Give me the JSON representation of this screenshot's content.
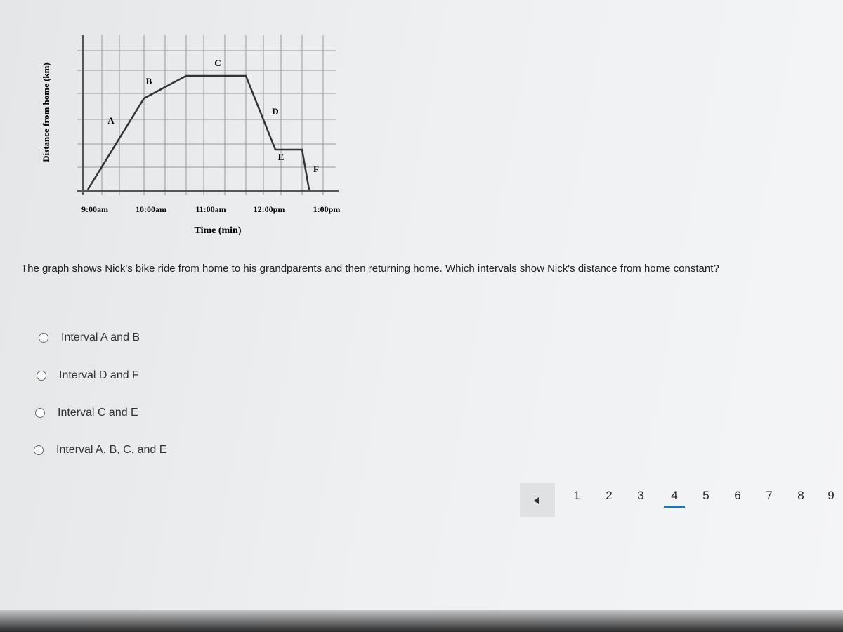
{
  "graph": {
    "y_label": "Distance from home (km)",
    "x_label": "Time (min)",
    "x_ticks": [
      "9:00am",
      "10:00am",
      "11:00am",
      "12:00pm",
      "1:00pm"
    ],
    "segment_labels": [
      "A",
      "B",
      "C",
      "D",
      "E",
      "F"
    ]
  },
  "question": "The graph shows Nick's bike ride from home to his grandparents and then returning home. Which intervals show Nick's distance from home constant?",
  "options": [
    "Interval A and B",
    "Interval D and F",
    "Interval C and E",
    "Interval A, B, C, and E"
  ],
  "pagination": {
    "pages": [
      "1",
      "2",
      "3",
      "4",
      "5",
      "6",
      "7",
      "8",
      "9"
    ],
    "current_page": 4
  }
}
